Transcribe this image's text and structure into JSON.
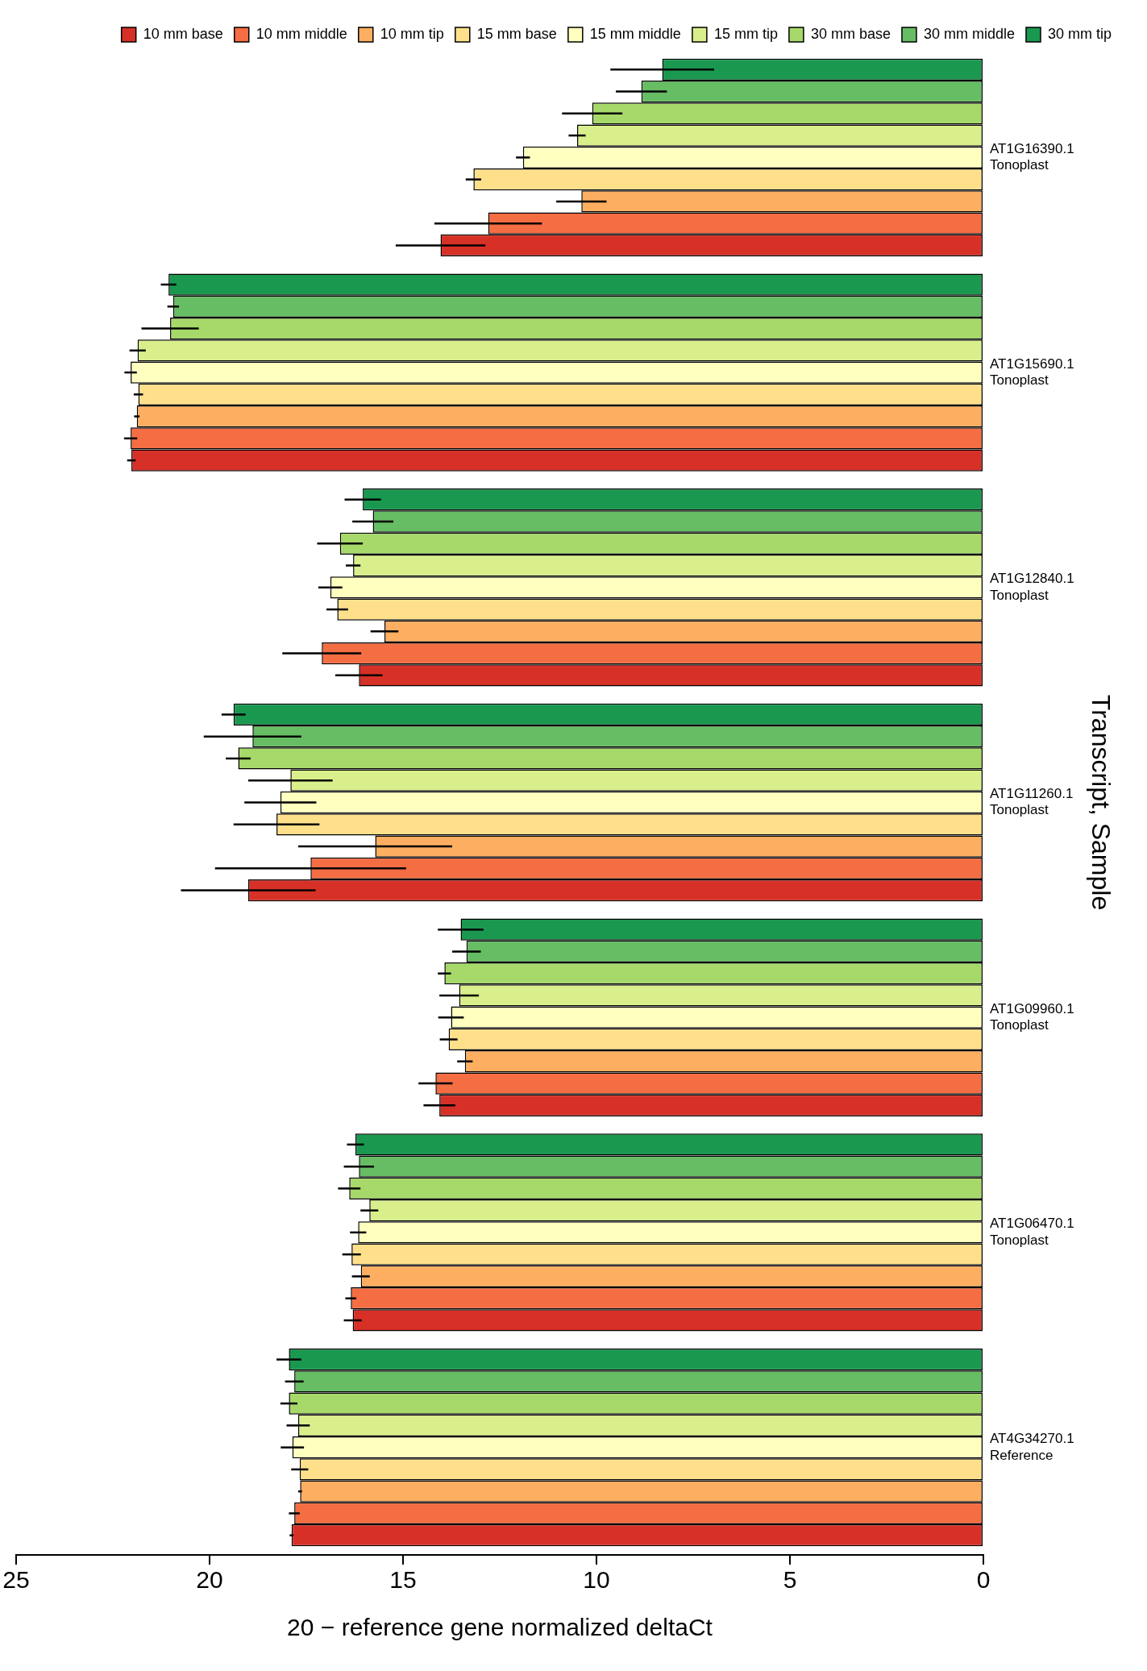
{
  "chart_data": {
    "type": "bar",
    "orientation": "horizontal",
    "xlabel": "20 − reference gene normalized deltaCt",
    "ylabel": "Transcript, Sample",
    "categories": [
      "AT1G16390.1 Tonoplast",
      "AT1G15690.1 Tonoplast",
      "AT1G12840.1 Tonoplast",
      "AT1G11260.1 Tonoplast",
      "AT1G09960.1 Tonoplast",
      "AT1G06470.1 Tonoplast",
      "AT4G34270.1 Reference"
    ],
    "xlim": [
      25,
      0
    ],
    "xticks": [
      0,
      5,
      10,
      15,
      20,
      25
    ],
    "grid": false,
    "legend": "top right",
    "series": [
      {
        "name": "10 mm base",
        "color": "#d73027",
        "values": [
          14.03,
          22.02,
          16.14,
          19.0,
          14.06,
          16.3,
          17.88
        ],
        "errors": [
          1.16,
          0.11,
          0.61,
          1.74,
          0.41,
          0.23,
          0.05
        ]
      },
      {
        "name": "10 mm middle",
        "color": "#f46d43",
        "values": [
          12.8,
          22.04,
          17.1,
          17.39,
          14.16,
          16.35,
          17.81
        ],
        "errors": [
          1.39,
          0.17,
          1.02,
          2.47,
          0.44,
          0.14,
          0.14
        ]
      },
      {
        "name": "10 mm tip",
        "color": "#fdae61",
        "values": [
          10.39,
          21.88,
          15.48,
          15.72,
          13.4,
          16.09,
          17.66
        ],
        "errors": [
          0.65,
          0.07,
          0.36,
          1.99,
          0.2,
          0.23,
          0.05
        ]
      },
      {
        "name": "15 mm base",
        "color": "#fee08b",
        "values": [
          13.18,
          21.84,
          16.7,
          18.27,
          13.82,
          16.33,
          17.67
        ],
        "errors": [
          0.2,
          0.12,
          0.28,
          1.11,
          0.23,
          0.24,
          0.22
        ]
      },
      {
        "name": "15 mm middle",
        "color": "#ffffbf",
        "values": [
          11.9,
          22.04,
          16.88,
          18.17,
          13.76,
          16.16,
          17.86
        ],
        "errors": [
          0.18,
          0.16,
          0.31,
          0.93,
          0.33,
          0.21,
          0.3
        ]
      },
      {
        "name": "15 mm tip",
        "color": "#d9ef8b",
        "values": [
          10.5,
          21.86,
          16.29,
          17.91,
          13.55,
          15.87,
          17.71
        ],
        "errors": [
          0.22,
          0.21,
          0.19,
          1.09,
          0.51,
          0.23,
          0.3
        ]
      },
      {
        "name": "30 mm base",
        "color": "#a6d96a",
        "values": [
          10.11,
          21.02,
          16.63,
          19.26,
          13.93,
          16.39,
          17.95
        ],
        "errors": [
          0.78,
          0.74,
          0.59,
          0.32,
          0.17,
          0.29,
          0.22
        ]
      },
      {
        "name": "30 mm middle",
        "color": "#66bd63",
        "values": [
          8.84,
          20.94,
          15.78,
          18.89,
          13.36,
          16.14,
          17.81
        ],
        "errors": [
          0.66,
          0.15,
          0.53,
          1.26,
          0.37,
          0.39,
          0.24
        ]
      },
      {
        "name": "30 mm tip",
        "color": "#1a9850",
        "values": [
          8.3,
          21.06,
          16.04,
          19.38,
          13.51,
          16.23,
          17.95
        ],
        "errors": [
          1.34,
          0.2,
          0.47,
          0.31,
          0.59,
          0.22,
          0.32
        ]
      }
    ]
  }
}
